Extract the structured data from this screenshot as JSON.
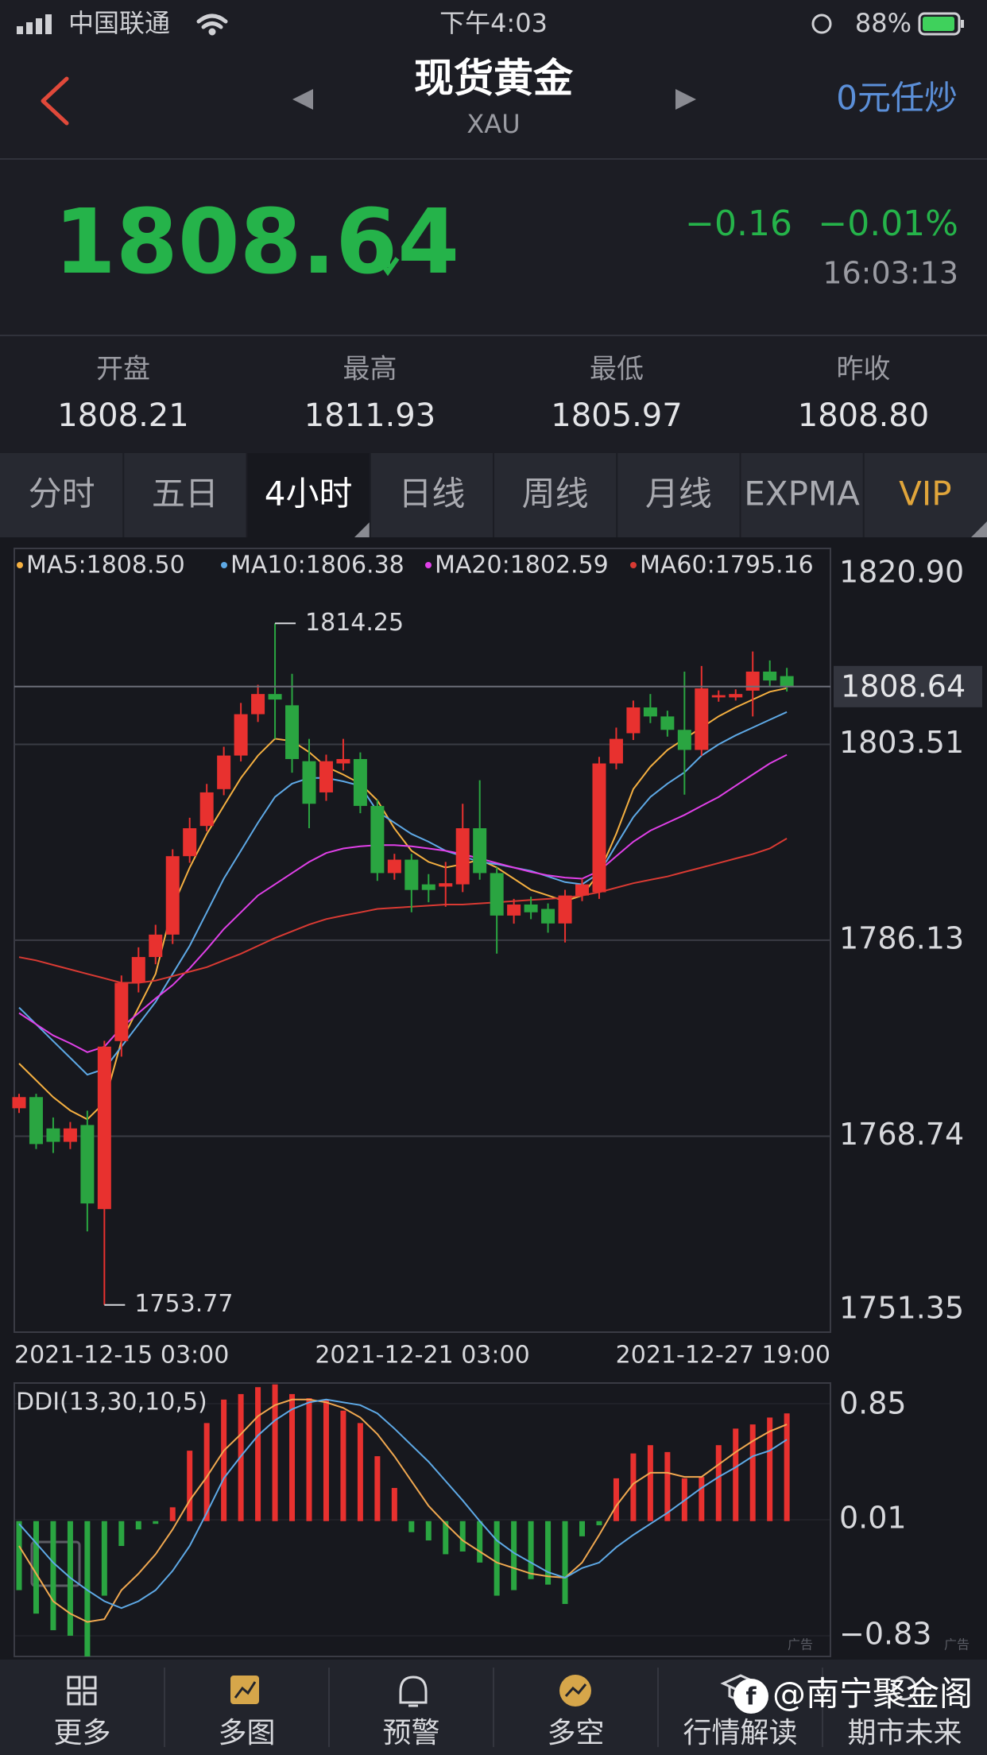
{
  "status_bar": {
    "carrier": "中国联通",
    "time": "下午4:03",
    "battery": "88%"
  },
  "header": {
    "title": "现货黄金",
    "subtitle": "XAU",
    "action": "0元任炒"
  },
  "quote": {
    "price": "1808.64",
    "change": "−0.16",
    "change_pct": "−0.01%",
    "time": "16:03:13"
  },
  "stats": [
    {
      "label": "开盘",
      "value": "1808.21"
    },
    {
      "label": "最高",
      "value": "1811.93"
    },
    {
      "label": "最低",
      "value": "1805.97"
    },
    {
      "label": "昨收",
      "value": "1808.80"
    }
  ],
  "tabs": [
    "分时",
    "五日",
    "4小时",
    "日线",
    "周线",
    "月线",
    "EXPMA",
    "VIP"
  ],
  "chart_data": [
    {
      "type": "candlestick",
      "up_color": "#e8312f",
      "down_color": "#2aa541",
      "open": [
        1771.22,
        1772.21,
        1769.43,
        1768.24,
        1769.73,
        1762.27,
        1777.18,
        1782.35,
        1784.64,
        1786.63,
        1793.59,
        1796.27,
        1799.54,
        1802.52,
        1806.19,
        1807.98,
        1806.98,
        1802.02,
        1799.25,
        1801.82,
        1802.21,
        1798.05,
        1792.09,
        1793.28,
        1791.09,
        1790.89,
        1791.09,
        1796.07,
        1792.09,
        1788.32,
        1789.3,
        1788.91,
        1787.62,
        1790.1,
        1790.39,
        1801.82,
        1804.5,
        1806.79,
        1805.99,
        1804.8,
        1803.02,
        1807.68,
        1807.68,
        1808.28,
        1809.97,
        1809.57
      ],
      "high": [
        1772.5,
        1772.5,
        1770.4,
        1770.0,
        1771.0,
        1777.2,
        1783.0,
        1785.5,
        1787.5,
        1794.2,
        1797.0,
        1800.0,
        1803.3,
        1807.19,
        1808.8,
        1814.25,
        1809.77,
        1804.0,
        1802.6,
        1804.0,
        1802.8,
        1798.6,
        1793.8,
        1793.8,
        1792.0,
        1793.08,
        1798.24,
        1800.33,
        1792.6,
        1789.8,
        1790.0,
        1789.4,
        1790.6,
        1791.6,
        1802.4,
        1805.0,
        1807.4,
        1807.98,
        1806.5,
        1809.97,
        1810.47,
        1808.3,
        1808.4,
        1811.76,
        1810.96,
        1810.3
      ],
      "low": [
        1770.8,
        1767.6,
        1767.25,
        1767.6,
        1760.29,
        1753.77,
        1775.8,
        1781.5,
        1784.0,
        1785.8,
        1793.0,
        1795.8,
        1799.0,
        1802.0,
        1805.5,
        1804.0,
        1801.0,
        1796.07,
        1798.5,
        1801.2,
        1797.4,
        1791.4,
        1791.5,
        1788.61,
        1789.5,
        1789.1,
        1790.4,
        1791.5,
        1784.94,
        1787.6,
        1788.0,
        1786.8,
        1785.93,
        1789.6,
        1789.8,
        1801.3,
        1803.9,
        1805.4,
        1804.2,
        1799.05,
        1802.5,
        1807.3,
        1807.4,
        1805.99,
        1808.7,
        1808.2
      ],
      "close": [
        1772.21,
        1768.04,
        1768.24,
        1769.43,
        1762.77,
        1776.69,
        1782.35,
        1784.64,
        1786.63,
        1793.59,
        1796.07,
        1799.25,
        1802.52,
        1806.19,
        1807.98,
        1807.49,
        1802.21,
        1798.24,
        1802.02,
        1802.21,
        1798.05,
        1792.09,
        1793.28,
        1790.59,
        1790.59,
        1791.19,
        1796.07,
        1792.09,
        1788.32,
        1789.3,
        1788.61,
        1787.62,
        1790.1,
        1791.09,
        1801.82,
        1804.0,
        1806.79,
        1805.99,
        1804.8,
        1803.02,
        1808.48,
        1807.88,
        1807.98,
        1809.97,
        1809.18,
        1808.64
      ],
      "series": [
        {
          "name": "MA5:1808.50",
          "color": "#f5b041",
          "values": [
            1775.19,
            1773.7,
            1772.21,
            1771.02,
            1770.23,
            1771.72,
            1777.18,
            1780.16,
            1783.14,
            1789.1,
            1792.58,
            1795.56,
            1798.05,
            1800.53,
            1802.52,
            1804.01,
            1803.81,
            1802.82,
            1801.52,
            1800.83,
            1800.03,
            1798.54,
            1796.06,
            1794.07,
            1793.08,
            1792.58,
            1792.88,
            1793.28,
            1792.58,
            1791.59,
            1790.6,
            1790.1,
            1789.6,
            1790.1,
            1792.09,
            1795.56,
            1799.54,
            1801.52,
            1803.02,
            1804.01,
            1805.0,
            1806.0,
            1806.79,
            1807.49,
            1808.18,
            1808.5
          ]
        },
        {
          "name": "MA10:1806.38",
          "color": "#5ea9e6",
          "values": [
            1780.16,
            1778.67,
            1777.18,
            1775.69,
            1774.2,
            1774.7,
            1776.68,
            1778.67,
            1780.66,
            1783.14,
            1785.63,
            1788.61,
            1791.59,
            1794.07,
            1796.56,
            1798.84,
            1800.03,
            1800.53,
            1800.53,
            1800.23,
            1799.84,
            1797.55,
            1796.56,
            1795.56,
            1794.87,
            1794.07,
            1793.58,
            1793.08,
            1792.88,
            1792.58,
            1792.28,
            1791.79,
            1791.29,
            1791.09,
            1792.09,
            1794.57,
            1797.05,
            1798.84,
            1800.03,
            1801.03,
            1802.52,
            1803.51,
            1804.31,
            1805.0,
            1805.7,
            1806.38
          ]
        },
        {
          "name": "MA20:1802.59",
          "color": "#e040e8",
          "values": [
            1779.67,
            1778.67,
            1777.68,
            1776.98,
            1776.19,
            1776.68,
            1778.37,
            1779.67,
            1780.96,
            1782.15,
            1783.64,
            1785.33,
            1787.12,
            1788.61,
            1790.1,
            1791.09,
            1792.09,
            1793.08,
            1793.87,
            1794.27,
            1794.47,
            1794.57,
            1794.57,
            1794.47,
            1794.27,
            1794.07,
            1793.77,
            1793.38,
            1792.98,
            1792.58,
            1792.19,
            1791.89,
            1791.69,
            1791.59,
            1792.28,
            1793.58,
            1794.87,
            1795.86,
            1796.56,
            1797.25,
            1798.05,
            1798.84,
            1799.84,
            1800.83,
            1801.82,
            1802.59
          ]
        },
        {
          "name": "MA60:1795.16",
          "color": "#d93a33",
          "values": [
            1784.63,
            1784.34,
            1783.94,
            1783.54,
            1783.14,
            1782.75,
            1782.35,
            1782.35,
            1782.55,
            1782.94,
            1783.34,
            1783.74,
            1784.34,
            1784.93,
            1785.63,
            1786.32,
            1786.92,
            1787.52,
            1788.01,
            1788.32,
            1788.61,
            1788.91,
            1789.01,
            1789.1,
            1789.2,
            1789.3,
            1789.3,
            1789.4,
            1789.5,
            1789.6,
            1789.7,
            1789.8,
            1789.9,
            1790.1,
            1790.39,
            1790.79,
            1791.19,
            1791.49,
            1791.79,
            1792.19,
            1792.58,
            1792.98,
            1793.38,
            1793.77,
            1794.27,
            1795.16
          ]
        }
      ],
      "ylim": [
        1751.35,
        1820.9
      ],
      "yticks": [
        {
          "value": 1820.9,
          "label": "1820.90"
        },
        1803.51,
        1786.13,
        1768.74,
        1751.35
      ],
      "grid": true,
      "current_label": "1808.64",
      "max_label": "1814.25",
      "min_label": "1753.77",
      "x_labels": [
        "2021-12-15 03:00",
        "2021-12-21 03:00",
        "2021-12-27 19:00"
      ]
    },
    {
      "type": "bar",
      "title": "DDI(13,30,10,5)",
      "up_color": "#e8312f",
      "down_color": "#2aa541",
      "values": [
        -0.5,
        -0.67,
        -0.79,
        -0.83,
        -0.98,
        -0.54,
        -0.18,
        -0.06,
        -0.02,
        0.1,
        0.51,
        0.71,
        0.88,
        0.92,
        0.97,
        0.99,
        0.92,
        0.89,
        0.88,
        0.8,
        0.71,
        0.47,
        0.24,
        -0.08,
        -0.14,
        -0.24,
        -0.22,
        -0.3,
        -0.54,
        -0.5,
        -0.42,
        -0.46,
        -0.6,
        -0.11,
        -0.03,
        0.31,
        0.49,
        0.55,
        0.5,
        0.31,
        0.32,
        0.55,
        0.67,
        0.7,
        0.75,
        0.78
      ],
      "series": [
        {
          "color": "#f0a850",
          "values": [
            -0.18,
            -0.38,
            -0.58,
            -0.67,
            -0.73,
            -0.71,
            -0.5,
            -0.38,
            -0.24,
            -0.06,
            0.15,
            0.32,
            0.51,
            0.63,
            0.76,
            0.84,
            0.88,
            0.88,
            0.86,
            0.82,
            0.75,
            0.63,
            0.47,
            0.29,
            0.11,
            -0.02,
            -0.14,
            -0.22,
            -0.3,
            -0.34,
            -0.38,
            -0.4,
            -0.41,
            -0.3,
            -0.1,
            0.11,
            0.27,
            0.35,
            0.35,
            0.32,
            0.32,
            0.41,
            0.5,
            0.58,
            0.65,
            0.7
          ]
        },
        {
          "color": "#5ea9e6",
          "values": [
            -0.02,
            -0.16,
            -0.3,
            -0.41,
            -0.5,
            -0.58,
            -0.63,
            -0.58,
            -0.5,
            -0.36,
            -0.18,
            0.06,
            0.31,
            0.47,
            0.62,
            0.73,
            0.81,
            0.86,
            0.88,
            0.86,
            0.84,
            0.78,
            0.67,
            0.55,
            0.43,
            0.29,
            0.15,
            0.0,
            -0.14,
            -0.23,
            -0.3,
            -0.37,
            -0.41,
            -0.34,
            -0.3,
            -0.19,
            -0.1,
            -0.02,
            0.06,
            0.15,
            0.24,
            0.32,
            0.39,
            0.47,
            0.51,
            0.59
          ]
        }
      ],
      "ylim": [
        -0.98,
        1.0
      ],
      "yticks": [
        0.85,
        0.01,
        {
          "value": -0.83,
          "label": "−0.83"
        }
      ],
      "grid": true
    }
  ],
  "ad_tags": [
    "广告",
    "广告"
  ],
  "nav": [
    "更多",
    "多图",
    "预警",
    "多空",
    "行情解读",
    "期市未来"
  ],
  "watermark": "@南宁聚金阁"
}
